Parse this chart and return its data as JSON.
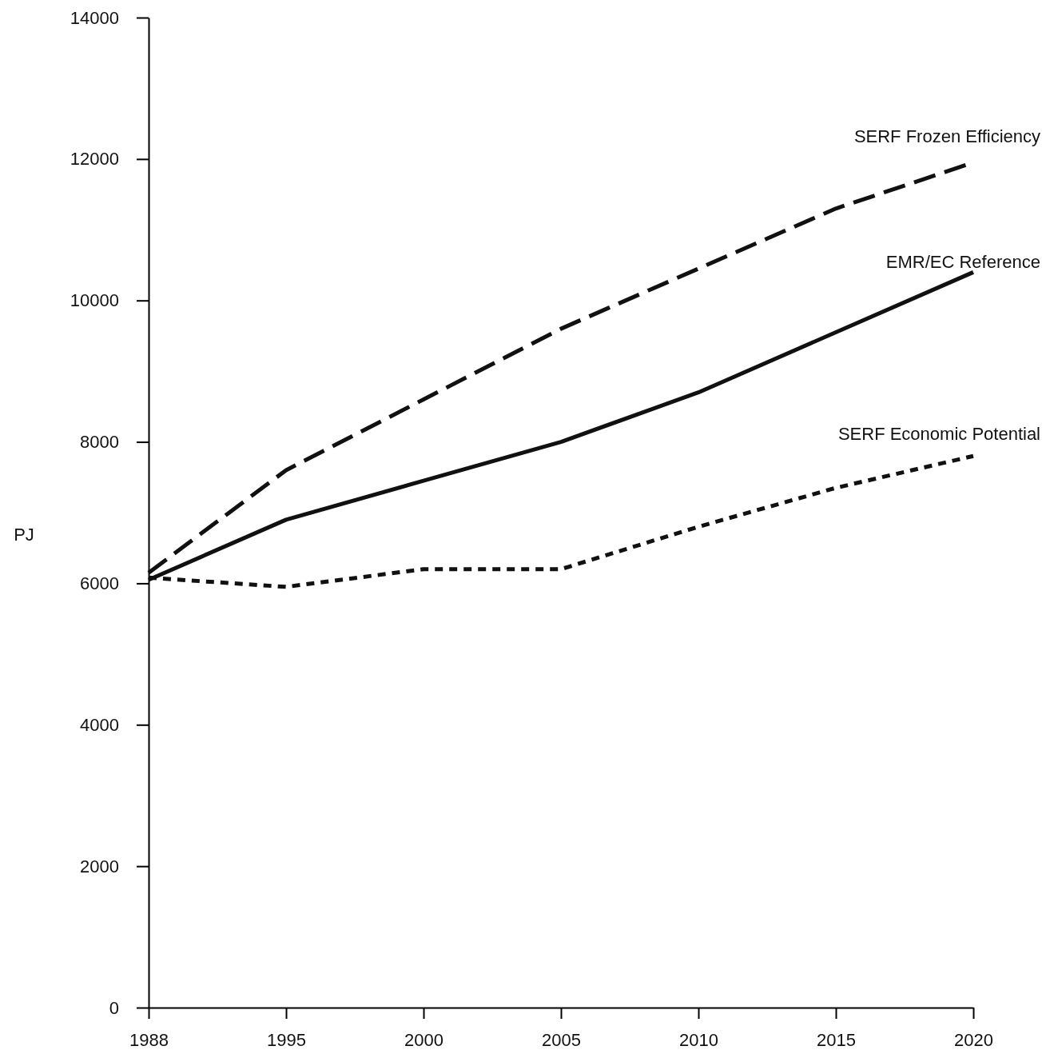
{
  "chart_data": {
    "type": "line",
    "ylabel": "PJ",
    "categories": [
      "1988",
      "1995",
      "2000",
      "2005",
      "2010",
      "2015",
      "2020"
    ],
    "ylim": [
      0,
      14000
    ],
    "yticks": [
      0,
      2000,
      4000,
      6000,
      8000,
      10000,
      12000,
      14000
    ],
    "grid": false,
    "marker": "none",
    "series": [
      {
        "name": "SERF Frozen Efficiency",
        "color": "#111111",
        "line_style": "dashed",
        "values": [
          6150,
          7600,
          8600,
          9600,
          10450,
          11300,
          11950
        ]
      },
      {
        "name": "EMR/EC Reference",
        "color": "#111111",
        "line_style": "solid",
        "values": [
          6050,
          6900,
          7450,
          8000,
          8700,
          9550,
          10400
        ]
      },
      {
        "name": "SERF Economic Potential",
        "color": "#111111",
        "line_style": "dotted",
        "values": [
          6080,
          5950,
          6200,
          6200,
          6800,
          7350,
          7800
        ]
      }
    ]
  }
}
